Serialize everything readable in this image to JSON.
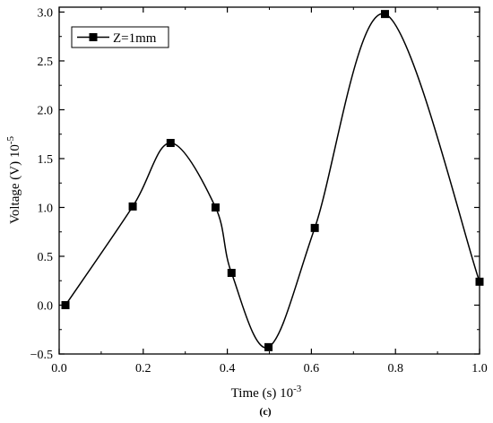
{
  "chart_data": {
    "type": "line",
    "title": "",
    "xlabel": "Time (s) 10",
    "xlabel_exponent": "-3",
    "ylabel": "Voltage (V) 10",
    "ylabel_exponent": "-5",
    "xlim": [
      0.0,
      1.0
    ],
    "ylim": [
      -0.5,
      3.05
    ],
    "x_ticks": [
      0.0,
      0.2,
      0.4,
      0.6,
      0.8,
      1.0
    ],
    "x_tick_labels": [
      "0.0",
      "0.2",
      "0.4",
      "0.6",
      "0.8",
      "1.0"
    ],
    "y_ticks": [
      -0.5,
      0.0,
      0.5,
      1.0,
      1.5,
      2.0,
      2.5,
      3.0
    ],
    "y_tick_labels": [
      "−0.5",
      "0.0",
      "0.5",
      "1.0",
      "1.5",
      "2.0",
      "2.5",
      "3.0"
    ],
    "grid": false,
    "legend_position": "top-left",
    "series": [
      {
        "name": "Z=1mm",
        "color": "#000000",
        "marker": "square",
        "smooth": true,
        "x": [
          0.015,
          0.175,
          0.265,
          0.372,
          0.41,
          0.498,
          0.608,
          0.775,
          1.0
        ],
        "y": [
          0.0,
          1.01,
          1.66,
          1.0,
          0.33,
          -0.43,
          0.79,
          2.98,
          0.24
        ]
      }
    ],
    "caption": "(c)"
  }
}
